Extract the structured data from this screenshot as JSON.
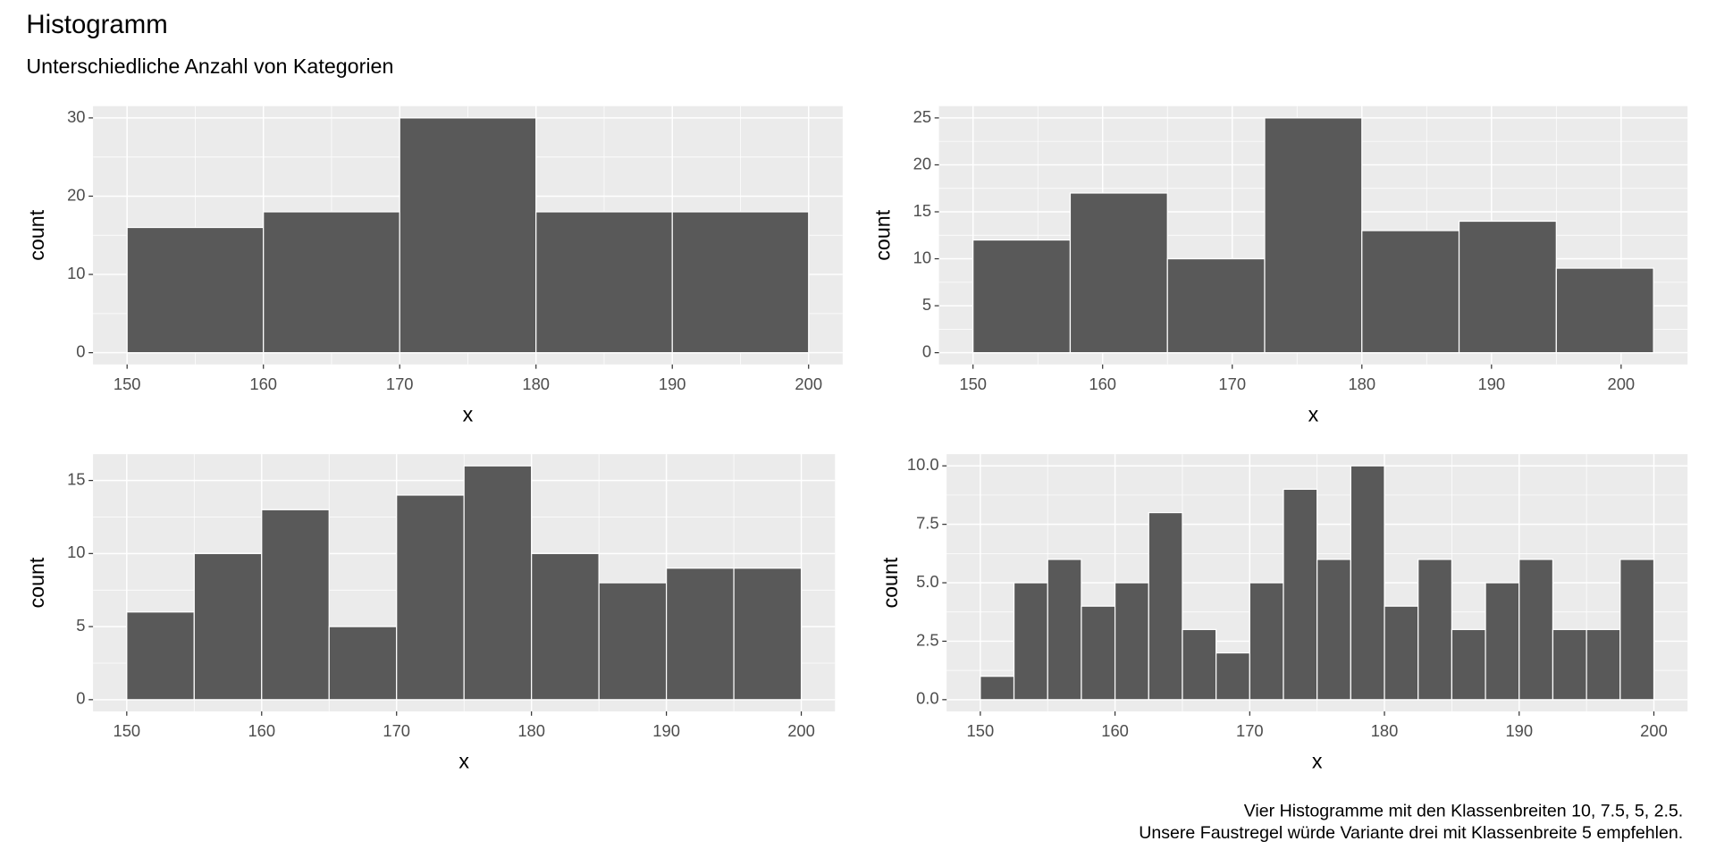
{
  "title": "Histogramm",
  "subtitle": "Unterschiedliche Anzahl von Kategorien",
  "caption": [
    "Vier Histogramme mit den Klassenbreiten 10, 7.5, 5, 2.5.",
    "Unsere Faustregel würde Variante drei mit Klassenbreite 5 empfehlen."
  ],
  "chart_data": [
    {
      "type": "histogram",
      "x_label": "x",
      "y_label": "count",
      "color": "#595959",
      "grid": true,
      "bins": [
        150,
        160,
        170,
        180,
        190,
        200
      ],
      "values": [
        16,
        18,
        30,
        18,
        18
      ],
      "xlim": [
        147.5,
        202.5
      ],
      "ylim": [
        -1.5,
        31.5
      ],
      "xticks": [
        150,
        160,
        170,
        180,
        190,
        200
      ],
      "yticks": [
        0,
        10,
        20,
        30
      ]
    },
    {
      "type": "histogram",
      "x_label": "x",
      "y_label": "count",
      "color": "#595959",
      "grid": true,
      "bins": [
        150,
        157.5,
        165,
        172.5,
        180,
        187.5,
        195,
        202.5
      ],
      "values": [
        12,
        17,
        10,
        25,
        13,
        14,
        9
      ],
      "xlim": [
        147.375,
        205.125
      ],
      "ylim": [
        -1.25,
        26.25
      ],
      "xticks": [
        150,
        160,
        170,
        180,
        190,
        200
      ],
      "yticks": [
        0,
        5,
        10,
        15,
        20,
        25
      ]
    },
    {
      "type": "histogram",
      "x_label": "x",
      "y_label": "count",
      "color": "#595959",
      "grid": true,
      "bins": [
        150,
        155,
        160,
        165,
        170,
        175,
        180,
        185,
        190,
        195,
        200
      ],
      "values": [
        6,
        10,
        13,
        5,
        14,
        16,
        10,
        8,
        9,
        9
      ],
      "xlim": [
        147.5,
        202.5
      ],
      "ylim": [
        -0.8,
        16.8
      ],
      "xticks": [
        150,
        160,
        170,
        180,
        190,
        200
      ],
      "yticks": [
        0,
        5,
        10,
        15
      ]
    },
    {
      "type": "histogram",
      "x_label": "x",
      "y_label": "count",
      "color": "#595959",
      "grid": true,
      "bins": [
        150,
        152.5,
        155,
        157.5,
        160,
        162.5,
        165,
        167.5,
        170,
        172.5,
        175,
        177.5,
        180,
        182.5,
        185,
        187.5,
        190,
        192.5,
        195,
        197.5,
        200
      ],
      "values": [
        1,
        5,
        6,
        4,
        5,
        8,
        3,
        2,
        5,
        9,
        6,
        10,
        4,
        6,
        3,
        5,
        6,
        3,
        3,
        6
      ],
      "xlim": [
        147.5,
        202.5
      ],
      "ylim": [
        -0.5,
        10.5
      ],
      "xticks": [
        150,
        160,
        170,
        180,
        190,
        200
      ],
      "yticks": [
        {
          "value": 0,
          "label": "0.0"
        },
        2.5,
        {
          "value": 5,
          "label": "5.0"
        },
        7.5,
        {
          "value": 10,
          "label": "10.0"
        }
      ]
    }
  ]
}
